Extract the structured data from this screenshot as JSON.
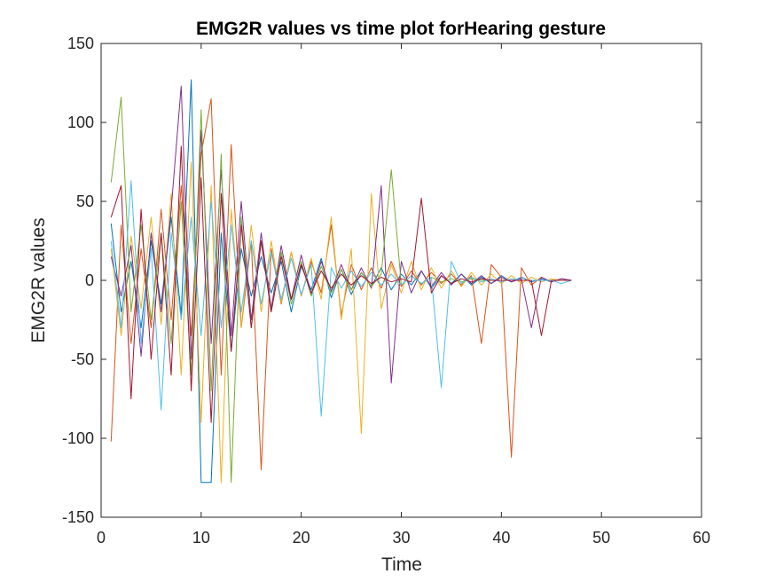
{
  "chart_data": {
    "type": "line",
    "title": "EMG2R values vs time plot forHearing gesture",
    "xlabel": "Time",
    "ylabel": "EMG2R values",
    "xlim": [
      0,
      60
    ],
    "ylim": [
      -150,
      150
    ],
    "xticks": [
      0,
      10,
      20,
      30,
      40,
      50,
      60
    ],
    "xtick_labels": [
      "0",
      "10",
      "20",
      "30",
      "40",
      "50",
      "60"
    ],
    "yticks": [
      -150,
      -100,
      -50,
      0,
      50,
      100,
      150
    ],
    "ytick_labels": [
      "-150",
      "-100",
      "-50",
      "0",
      "50",
      "100",
      "150"
    ],
    "grid": false,
    "legend": "none",
    "colors": [
      "#0072BD",
      "#D95319",
      "#EDB120",
      "#7E2F8E",
      "#77AC30",
      "#4DBEEE",
      "#A2142F"
    ],
    "x": [
      1,
      2,
      3,
      4,
      5,
      6,
      7,
      8,
      9,
      10,
      11,
      12,
      13,
      14,
      15,
      16,
      17,
      18,
      19,
      20,
      21,
      22,
      23,
      24,
      25,
      26,
      27,
      28,
      29,
      30,
      31,
      32,
      33,
      34,
      35,
      36,
      37,
      38,
      39,
      40,
      41,
      42,
      43,
      44,
      45,
      46,
      47
    ],
    "series": [
      {
        "values": [
          36,
          -20,
          12,
          -30,
          25,
          -15,
          40,
          -22,
          127,
          -128,
          -128,
          30,
          -45,
          20,
          -10,
          15,
          -8,
          12,
          -20,
          9,
          -6,
          14,
          -11,
          7,
          -9,
          5,
          -4,
          8,
          -6,
          4,
          -3,
          6,
          -5,
          3,
          -2,
          4,
          -3,
          2,
          -2,
          3,
          -1,
          2,
          -1,
          1,
          -1,
          1,
          0
        ]
      },
      {
        "values": [
          -102,
          35,
          -40,
          20,
          -30,
          45,
          -25,
          60,
          -35,
          80,
          115,
          -60,
          86,
          -30,
          25,
          -120,
          20,
          -15,
          18,
          -10,
          12,
          -8,
          35,
          -22,
          10,
          -6,
          8,
          -5,
          12,
          -4,
          6,
          -3,
          5,
          -2,
          4,
          -3,
          3,
          -40,
          10,
          2,
          -112,
          8,
          -3,
          2,
          -1,
          1,
          0
        ]
      },
      {
        "values": [
          20,
          -35,
          28,
          -18,
          40,
          -28,
          55,
          -60,
          75,
          -90,
          60,
          -128,
          45,
          -30,
          35,
          -20,
          25,
          -14,
          18,
          -10,
          14,
          -12,
          40,
          -25,
          20,
          -97,
          55,
          -18,
          10,
          -8,
          12,
          -6,
          8,
          -5,
          6,
          -4,
          5,
          -3,
          4,
          -2,
          3,
          -2,
          2,
          -1,
          1,
          0,
          0
        ]
      },
      {
        "values": [
          15,
          -10,
          22,
          -48,
          30,
          -20,
          45,
          123,
          -50,
          95,
          -40,
          70,
          -35,
          50,
          -25,
          30,
          -18,
          22,
          -12,
          16,
          -9,
          12,
          -7,
          10,
          -6,
          8,
          -5,
          60,
          -65,
          12,
          -8,
          6,
          -4,
          5,
          -3,
          4,
          -2,
          3,
          -2,
          2,
          -1,
          1,
          -30,
          2,
          -1,
          1,
          0
        ]
      },
      {
        "values": [
          62,
          116,
          -20,
          35,
          -25,
          30,
          -40,
          50,
          -60,
          108,
          -70,
          80,
          -128,
          40,
          -30,
          25,
          -20,
          18,
          -15,
          12,
          -10,
          9,
          -8,
          7,
          -6,
          5,
          -4,
          4,
          70,
          -3,
          3,
          -2,
          2,
          -1,
          1,
          -1,
          1,
          0,
          0,
          0,
          0,
          0,
          0,
          0,
          0,
          0,
          0
        ]
      },
      {
        "values": [
          25,
          -30,
          63,
          -40,
          20,
          -82,
          30,
          -25,
          40,
          -35,
          50,
          -30,
          35,
          -20,
          25,
          -15,
          18,
          -12,
          14,
          -9,
          10,
          -86,
          8,
          -5,
          6,
          -4,
          5,
          -3,
          4,
          -3,
          3,
          -2,
          2,
          -68,
          12,
          -2,
          2,
          -1,
          1,
          -1,
          1,
          0,
          0,
          0,
          0,
          -2,
          0
        ]
      },
      {
        "values": [
          40,
          60,
          -75,
          45,
          -50,
          30,
          -60,
          85,
          -70,
          65,
          -90,
          55,
          -45,
          35,
          -30,
          25,
          -20,
          15,
          -12,
          10,
          -8,
          6,
          -5,
          4,
          -3,
          3,
          -2,
          2,
          -1,
          1,
          -1,
          52,
          -8,
          3,
          -2,
          1,
          -1,
          1,
          0,
          0,
          0,
          0,
          0,
          -35,
          0,
          0,
          0
        ]
      }
    ]
  }
}
